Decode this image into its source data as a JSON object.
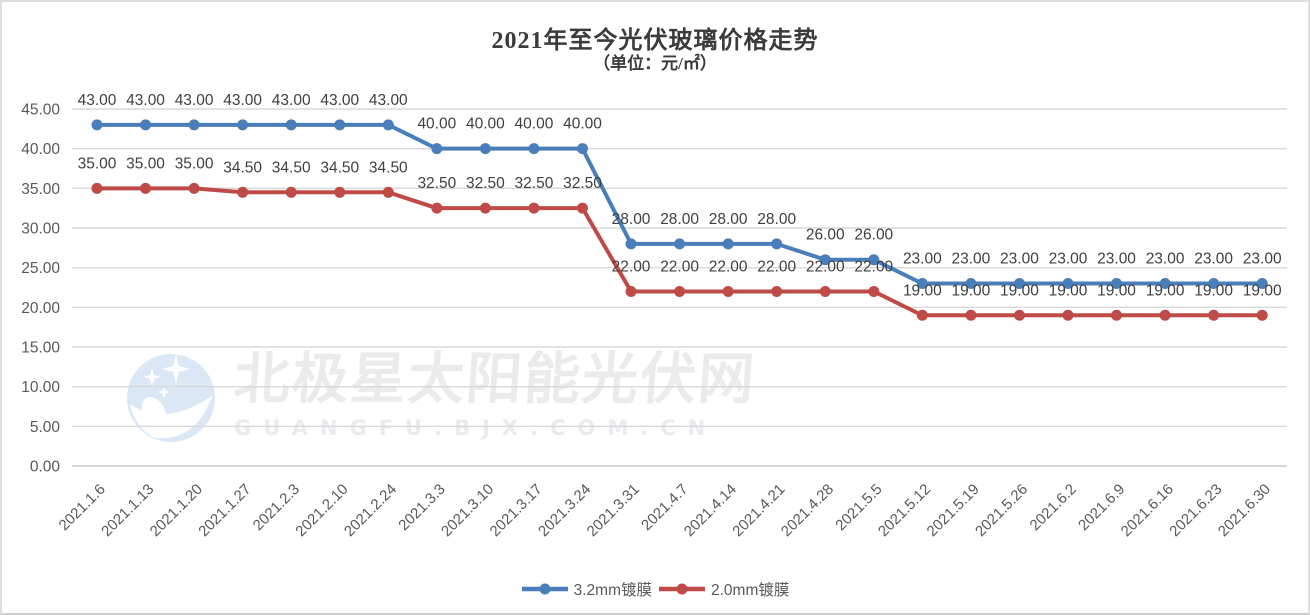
{
  "chart_data": {
    "type": "line",
    "title": "2021年至今光伏玻璃价格走势",
    "subtitle": "（单位：元/㎡）",
    "categories": [
      "2021.1.6",
      "2021.1.13",
      "2021.1.20",
      "2021.1.27",
      "2021.2.3",
      "2021.2.10",
      "2021.2.24",
      "2021.3.3",
      "2021.3.10",
      "2021.3.17",
      "2021.3.24",
      "2021.3.31",
      "2021.4.7",
      "2021.4.14",
      "2021.4.21",
      "2021.4.28",
      "2021.5.5",
      "2021.5.12",
      "2021.5.19",
      "2021.5.26",
      "2021.6.2",
      "2021.6.9",
      "2021.6.16",
      "2021.6.23",
      "2021.6.30"
    ],
    "series": [
      {
        "name": "3.2mm镀膜",
        "color": "#4A7EBB",
        "values": [
          43,
          43,
          43,
          43,
          43,
          43,
          43,
          40,
          40,
          40,
          40,
          28,
          28,
          28,
          28,
          26,
          26,
          23,
          23,
          23,
          23,
          23,
          23,
          23,
          23
        ]
      },
      {
        "name": "2.0mm镀膜",
        "color": "#BE4B48",
        "values": [
          35,
          35,
          35,
          34.5,
          34.5,
          34.5,
          34.5,
          32.5,
          32.5,
          32.5,
          32.5,
          22,
          22,
          22,
          22,
          22,
          22,
          19,
          19,
          19,
          19,
          19,
          19,
          19,
          19
        ]
      }
    ],
    "ylim": [
      0,
      45
    ],
    "ytick_step": 5,
    "value_label_decimals": 2,
    "grid": "horizontal",
    "legend_position": "bottom",
    "grid_color": "#d9d9d9",
    "axis_label_color": "#595959",
    "data_label_color": "#3f3f3f"
  },
  "watermark": {
    "line1": "北极星太阳能光伏网",
    "line2": "GUANGFU.BJX.COM.CN"
  }
}
